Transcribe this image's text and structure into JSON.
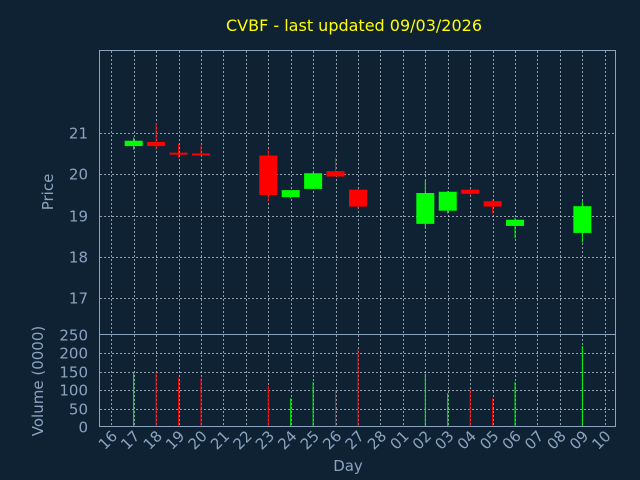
{
  "title": "CVBF - last updated 09/03/2026",
  "colors": {
    "background": "#0f2233",
    "up": "#00ff00",
    "down": "#ff0000",
    "axis": "#8aa4c0",
    "title": "#ffff00"
  },
  "chart_data": [
    {
      "type": "candlestick",
      "ylabel": "Price",
      "ylim": [
        16.1,
        23.0
      ],
      "yticks": [
        17,
        18,
        19,
        20,
        21
      ],
      "grid": true,
      "series": [
        {
          "day": "17",
          "open": 20.69,
          "high": 20.9,
          "low": 20.6,
          "close": 20.82
        },
        {
          "day": "18",
          "open": 20.79,
          "high": 21.25,
          "low": 20.6,
          "close": 20.69
        },
        {
          "day": "19",
          "open": 20.53,
          "high": 20.75,
          "low": 20.4,
          "close": 20.5
        },
        {
          "day": "20",
          "open": 20.51,
          "high": 20.7,
          "low": 20.48,
          "close": 20.49
        },
        {
          "day": "23",
          "open": 20.46,
          "high": 20.6,
          "low": 19.35,
          "close": 19.5
        },
        {
          "day": "24",
          "open": 19.45,
          "high": 19.6,
          "low": 19.42,
          "close": 19.62
        },
        {
          "day": "25",
          "open": 19.65,
          "high": 20.05,
          "low": 19.65,
          "close": 20.03
        },
        {
          "day": "26",
          "open": 20.08,
          "high": 20.4,
          "low": 19.95,
          "close": 19.95
        },
        {
          "day": "27",
          "open": 19.63,
          "high": 19.65,
          "low": 19.15,
          "close": 19.22
        },
        {
          "day": "02",
          "open": 18.8,
          "high": 19.85,
          "low": 18.7,
          "close": 19.55
        },
        {
          "day": "03",
          "open": 19.12,
          "high": 19.6,
          "low": 19.05,
          "close": 19.58
        },
        {
          "day": "04",
          "open": 19.63,
          "high": 19.65,
          "low": 19.5,
          "close": 19.53
        },
        {
          "day": "05",
          "open": 19.35,
          "high": 19.4,
          "low": 19.05,
          "close": 19.22
        },
        {
          "day": "06",
          "open": 18.75,
          "high": 18.95,
          "low": 18.45,
          "close": 18.9
        },
        {
          "day": "09",
          "open": 18.58,
          "high": 19.35,
          "low": 18.35,
          "close": 19.23
        }
      ]
    },
    {
      "type": "bar",
      "ylabel": "Volume (0000)",
      "xlabel": "Day",
      "ylim": [
        0,
        250
      ],
      "yticks": [
        0,
        50,
        100,
        150,
        200,
        250
      ],
      "grid": true,
      "categories": [
        "16",
        "17",
        "18",
        "19",
        "20",
        "21",
        "22",
        "23",
        "24",
        "25",
        "26",
        "27",
        "28",
        "01",
        "02",
        "03",
        "04",
        "05",
        "06",
        "07",
        "08",
        "09",
        "10"
      ],
      "values": [
        {
          "day": "17",
          "volume": 150,
          "direction": "up"
        },
        {
          "day": "18",
          "volume": 148,
          "direction": "down"
        },
        {
          "day": "19",
          "volume": 135,
          "direction": "down"
        },
        {
          "day": "20",
          "volume": 133,
          "direction": "down"
        },
        {
          "day": "23",
          "volume": 112,
          "direction": "down"
        },
        {
          "day": "24",
          "volume": 78,
          "direction": "up"
        },
        {
          "day": "25",
          "volume": 122,
          "direction": "up"
        },
        {
          "day": "26",
          "volume": 100,
          "direction": "down"
        },
        {
          "day": "27",
          "volume": 212,
          "direction": "down"
        },
        {
          "day": "02",
          "volume": 145,
          "direction": "up"
        },
        {
          "day": "03",
          "volume": 92,
          "direction": "up"
        },
        {
          "day": "04",
          "volume": 102,
          "direction": "down"
        },
        {
          "day": "05",
          "volume": 78,
          "direction": "down"
        },
        {
          "day": "06",
          "volume": 122,
          "direction": "up"
        },
        {
          "day": "09",
          "volume": 220,
          "direction": "up"
        }
      ]
    }
  ]
}
